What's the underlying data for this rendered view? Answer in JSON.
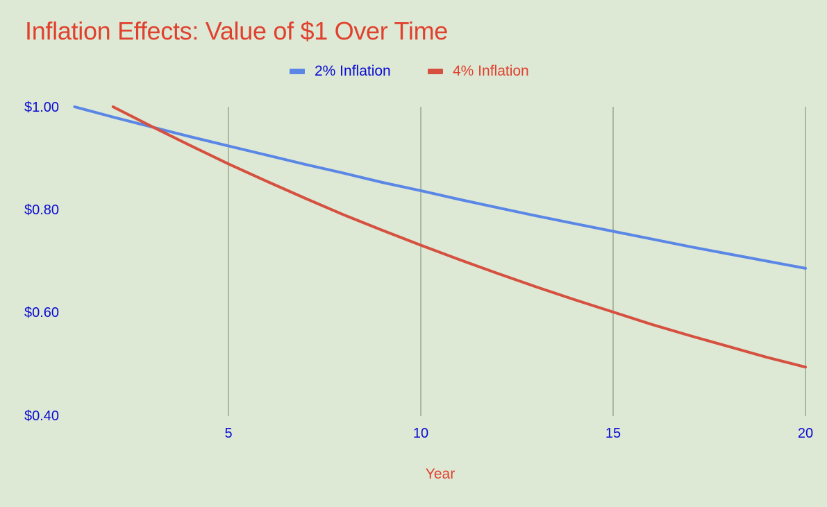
{
  "title": "Inflation Effects: Value of $1 Over Time",
  "colors": {
    "background": "#dde9d5",
    "title": "#e0412f",
    "axis_text": "#0a0ad2",
    "gridline": "#a9b8a2",
    "series_2pct": "#5a86e6",
    "series_4pct": "#d65040"
  },
  "legend": {
    "items": [
      {
        "label": "2% Inflation",
        "color": "#5a86e6",
        "text_color": "#0a0ad2"
      },
      {
        "label": "4% Inflation",
        "color": "#d65040",
        "text_color": "#e0412f"
      }
    ]
  },
  "axes": {
    "x_label": "Year",
    "x_ticks": [
      "5",
      "10",
      "15",
      "20"
    ],
    "y_ticks": [
      "$1.00",
      "$0.80",
      "$0.60",
      "$0.40"
    ]
  },
  "chart_data": {
    "type": "line",
    "title": "Inflation Effects: Value of $1 Over Time",
    "xlabel": "Year",
    "ylabel": "",
    "xlim": [
      1,
      20
    ],
    "ylim": [
      0.4,
      1.0
    ],
    "x_ticks": [
      5,
      10,
      15,
      20
    ],
    "y_ticks": [
      0.4,
      0.6,
      0.8,
      1.0
    ],
    "y_tick_labels": [
      "$0.40",
      "$0.60",
      "$0.80",
      "$1.00"
    ],
    "grid": {
      "vertical": true,
      "horizontal": false
    },
    "legend_position": "top",
    "series": [
      {
        "name": "2% Inflation",
        "color": "#5a86e6",
        "x": [
          1,
          2,
          3,
          4,
          5,
          6,
          7,
          8,
          9,
          10,
          11,
          12,
          13,
          14,
          15,
          16,
          17,
          18,
          19,
          20
        ],
        "values": [
          1.0,
          0.98,
          0.961,
          0.942,
          0.924,
          0.906,
          0.888,
          0.871,
          0.853,
          0.837,
          0.82,
          0.804,
          0.788,
          0.773,
          0.758,
          0.743,
          0.728,
          0.714,
          0.7,
          0.686
        ]
      },
      {
        "name": "4% Inflation",
        "color": "#d65040",
        "x": [
          2,
          3,
          4,
          5,
          6,
          7,
          8,
          9,
          10,
          11,
          12,
          13,
          14,
          15,
          16,
          17,
          18,
          19,
          20
        ],
        "values": [
          1.0,
          0.962,
          0.925,
          0.889,
          0.855,
          0.822,
          0.79,
          0.76,
          0.731,
          0.703,
          0.676,
          0.65,
          0.625,
          0.601,
          0.577,
          0.555,
          0.534,
          0.513,
          0.494
        ]
      }
    ]
  }
}
